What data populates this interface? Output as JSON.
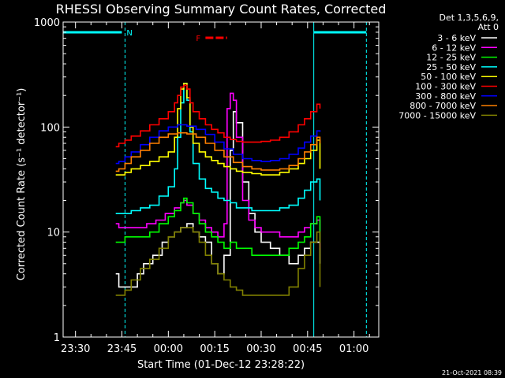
{
  "chart_data": {
    "type": "line",
    "title": "RHESSI Observing Summary Count Rates, Corrected",
    "xlabel": "Start Time (01-Dec-12 23:28:22)",
    "ylabel": "Corrected Count Rate (s⁻¹ detector⁻¹)",
    "yscale": "log",
    "ylim": [
      1,
      1000
    ],
    "xlim": [
      "23:26",
      "01:08"
    ],
    "x_ticks": [
      "23:30",
      "23:45",
      "00:00",
      "00:15",
      "00:30",
      "00:45",
      "01:00"
    ],
    "y_ticks": [
      "1",
      "10",
      "100",
      "1000"
    ],
    "legend_header": [
      "Det 1,3,5,6,9,",
      "Att 0"
    ],
    "legend_position": "top-right-outside",
    "flag_labels": [
      {
        "text": "N",
        "color": "#00ffff",
        "x_start": "23:26",
        "x_end": "23:46"
      },
      {
        "text": "F",
        "color": "#ff0000",
        "x_start": "00:12",
        "x_end": "00:19"
      }
    ],
    "night_intervals": [
      {
        "start": "23:26",
        "end": "23:46"
      },
      {
        "start": "00:47",
        "end": "01:04"
      }
    ],
    "series": [
      {
        "name": "3 - 6 keV",
        "color": "#ffffff",
        "x": [
          "23:43",
          "23:44",
          "23:46",
          "23:48",
          "23:50",
          "23:52",
          "23:55",
          "23:58",
          "00:00",
          "00:02",
          "00:04",
          "00:06",
          "00:08",
          "00:10",
          "00:12",
          "00:14",
          "00:16",
          "00:18",
          "00:20",
          "00:21",
          "00:22",
          "00:24",
          "00:26",
          "00:28",
          "00:30",
          "00:33",
          "00:36",
          "00:39",
          "00:42",
          "00:44",
          "00:46",
          "00:48",
          "00:49"
        ],
        "values": [
          4,
          3,
          3,
          3,
          4,
          5,
          6,
          8,
          9,
          10,
          11,
          12,
          10,
          9,
          8,
          5,
          4,
          6,
          60,
          140,
          110,
          30,
          15,
          10,
          8,
          7,
          6,
          5,
          6,
          7,
          8,
          8,
          5
        ]
      },
      {
        "name": "6 - 12 keV",
        "color": "#ff00ff",
        "x": [
          "23:43",
          "23:44",
          "23:46",
          "23:48",
          "23:50",
          "23:53",
          "23:56",
          "23:59",
          "00:02",
          "00:04",
          "00:05",
          "00:06",
          "00:08",
          "00:10",
          "00:12",
          "00:14",
          "00:16",
          "00:18",
          "00:19",
          "00:20",
          "00:21",
          "00:22",
          "00:24",
          "00:26",
          "00:28",
          "00:30",
          "00:33",
          "00:36",
          "00:39",
          "00:42",
          "00:44",
          "00:46",
          "00:48",
          "00:49"
        ],
        "values": [
          12,
          11,
          11,
          11,
          11,
          12,
          13,
          15,
          17,
          19,
          20,
          18,
          15,
          13,
          11,
          10,
          9,
          12,
          150,
          210,
          180,
          80,
          20,
          13,
          11,
          10,
          10,
          9,
          9,
          10,
          11,
          12,
          13,
          7
        ]
      },
      {
        "name": "12 - 25 keV",
        "color": "#00ff00",
        "x": [
          "23:43",
          "23:44",
          "23:46",
          "23:48",
          "23:51",
          "23:54",
          "23:57",
          "00:00",
          "00:02",
          "00:04",
          "00:05",
          "00:06",
          "00:08",
          "00:10",
          "00:12",
          "00:14",
          "00:16",
          "00:18",
          "00:20",
          "00:22",
          "00:24",
          "00:27",
          "00:30",
          "00:33",
          "00:36",
          "00:39",
          "00:42",
          "00:44",
          "00:46",
          "00:48",
          "00:49"
        ],
        "values": [
          8,
          8,
          9,
          9,
          9,
          10,
          12,
          14,
          16,
          19,
          21,
          19,
          15,
          12,
          10,
          9,
          8,
          7,
          8,
          7,
          7,
          6,
          6,
          6,
          6,
          7,
          8,
          9,
          12,
          14,
          8
        ]
      },
      {
        "name": "25 - 50 keV",
        "color": "#00ffff",
        "x": [
          "23:43",
          "23:44",
          "23:46",
          "23:48",
          "23:51",
          "23:54",
          "23:57",
          "00:00",
          "00:02",
          "00:03",
          "00:04",
          "00:05",
          "00:06",
          "00:07",
          "00:08",
          "00:10",
          "00:12",
          "00:14",
          "00:16",
          "00:18",
          "00:20",
          "00:22",
          "00:24",
          "00:27",
          "00:30",
          "00:33",
          "00:36",
          "00:39",
          "00:42",
          "00:44",
          "00:46",
          "00:48",
          "00:49"
        ],
        "values": [
          15,
          15,
          15,
          16,
          17,
          18,
          22,
          27,
          40,
          80,
          170,
          260,
          180,
          90,
          45,
          32,
          26,
          24,
          21,
          20,
          19,
          17,
          17,
          16,
          16,
          16,
          17,
          18,
          21,
          25,
          30,
          32,
          20
        ]
      },
      {
        "name": "50 - 100 keV",
        "color": "#ffff00",
        "x": [
          "23:43",
          "23:44",
          "23:46",
          "23:48",
          "23:51",
          "23:54",
          "23:57",
          "00:00",
          "00:02",
          "00:03",
          "00:04",
          "00:05",
          "00:06",
          "00:07",
          "00:08",
          "00:10",
          "00:12",
          "00:14",
          "00:16",
          "00:18",
          "00:20",
          "00:22",
          "00:24",
          "00:27",
          "00:30",
          "00:33",
          "00:36",
          "00:39",
          "00:42",
          "00:44",
          "00:46",
          "00:48",
          "00:49"
        ],
        "values": [
          35,
          35,
          37,
          40,
          43,
          47,
          52,
          58,
          80,
          150,
          230,
          260,
          190,
          100,
          70,
          58,
          52,
          48,
          45,
          42,
          40,
          38,
          37,
          36,
          35,
          35,
          37,
          40,
          45,
          50,
          60,
          75,
          40
        ]
      },
      {
        "name": "100 - 300 keV",
        "color": "#ff0000",
        "x": [
          "23:43",
          "23:44",
          "23:46",
          "23:48",
          "23:51",
          "23:54",
          "23:57",
          "00:00",
          "00:02",
          "00:03",
          "00:04",
          "00:05",
          "00:06",
          "00:07",
          "00:08",
          "00:10",
          "00:12",
          "00:14",
          "00:16",
          "00:18",
          "00:20",
          "00:22",
          "00:24",
          "00:27",
          "00:30",
          "00:33",
          "00:36",
          "00:39",
          "00:42",
          "00:44",
          "00:46",
          "00:48",
          "00:49"
        ],
        "values": [
          65,
          70,
          75,
          82,
          92,
          105,
          120,
          140,
          170,
          200,
          240,
          250,
          230,
          170,
          140,
          120,
          105,
          95,
          88,
          80,
          76,
          73,
          72,
          72,
          73,
          75,
          80,
          90,
          105,
          120,
          140,
          165,
          150
        ]
      },
      {
        "name": "300 - 800 keV",
        "color": "#0000ff",
        "x": [
          "23:43",
          "23:44",
          "23:46",
          "23:48",
          "23:51",
          "23:54",
          "23:57",
          "00:00",
          "00:03",
          "00:06",
          "00:09",
          "00:12",
          "00:15",
          "00:18",
          "00:21",
          "00:24",
          "00:27",
          "00:30",
          "00:33",
          "00:36",
          "00:39",
          "00:42",
          "00:44",
          "00:46",
          "00:48",
          "00:49"
        ],
        "values": [
          45,
          47,
          52,
          58,
          68,
          80,
          92,
          100,
          105,
          102,
          95,
          85,
          72,
          62,
          55,
          50,
          48,
          47,
          48,
          50,
          55,
          63,
          72,
          82,
          92,
          90
        ]
      },
      {
        "name": "800 - 7000 keV",
        "color": "#ff8000",
        "x": [
          "23:43",
          "23:44",
          "23:46",
          "23:48",
          "23:51",
          "23:54",
          "23:57",
          "00:00",
          "00:03",
          "00:06",
          "00:09",
          "00:12",
          "00:15",
          "00:18",
          "00:21",
          "00:24",
          "00:27",
          "00:30",
          "00:33",
          "00:36",
          "00:39",
          "00:42",
          "00:44",
          "00:46",
          "00:48",
          "00:49"
        ],
        "values": [
          38,
          40,
          45,
          52,
          60,
          70,
          80,
          86,
          88,
          86,
          80,
          70,
          60,
          52,
          46,
          42,
          40,
          39,
          39,
          40,
          43,
          50,
          58,
          68,
          80,
          70
        ]
      },
      {
        "name": "7000 - 15000 keV",
        "color": "#808000",
        "x": [
          "23:43",
          "23:44",
          "23:46",
          "23:48",
          "23:51",
          "23:54",
          "23:57",
          "00:00",
          "00:02",
          "00:04",
          "00:06",
          "00:08",
          "00:10",
          "00:12",
          "00:14",
          "00:16",
          "00:18",
          "00:20",
          "00:22",
          "00:24",
          "00:27",
          "00:30",
          "00:33",
          "00:36",
          "00:39",
          "00:42",
          "00:44",
          "00:46",
          "00:48",
          "00:49"
        ],
        "values": [
          2.5,
          2.5,
          2.8,
          3.5,
          4.5,
          5.5,
          7,
          9,
          10,
          11,
          11,
          10,
          8,
          6,
          5,
          4,
          3.5,
          3,
          2.8,
          2.5,
          2.5,
          2.5,
          2.5,
          2.5,
          3,
          4.5,
          6,
          8,
          10,
          3
        ]
      }
    ]
  },
  "footer": {
    "timestamp": "21-Oct-2021 08:39"
  }
}
